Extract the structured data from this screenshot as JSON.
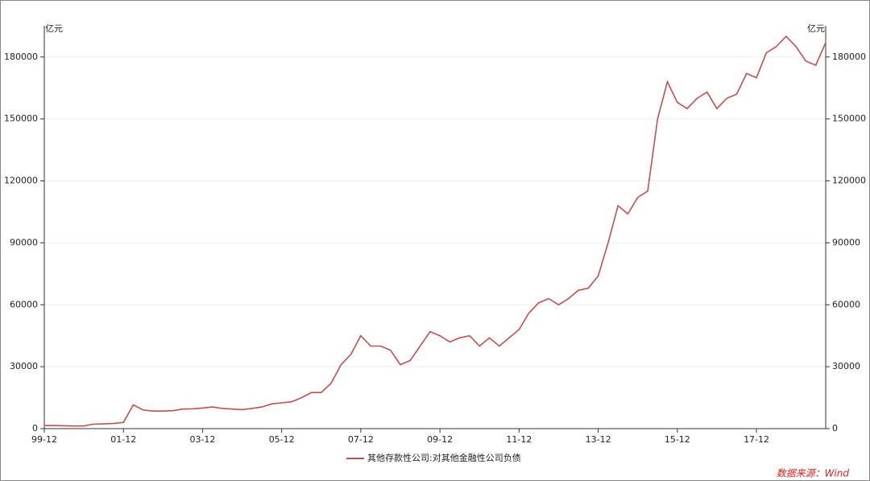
{
  "chart_data": {
    "type": "line",
    "y_label": "亿元",
    "y2_label": "亿元",
    "source": "数据来源：Wind",
    "categories": [
      "99-12",
      null,
      null,
      null,
      null,
      null,
      null,
      null,
      "01-12",
      null,
      null,
      null,
      null,
      null,
      null,
      null,
      "03-12",
      null,
      null,
      null,
      null,
      null,
      null,
      null,
      "05-12",
      null,
      null,
      null,
      null,
      null,
      null,
      null,
      "07-12",
      null,
      null,
      null,
      null,
      null,
      null,
      null,
      "09-12",
      null,
      null,
      null,
      null,
      null,
      null,
      null,
      "11-12",
      null,
      null,
      null,
      null,
      null,
      null,
      null,
      "13-12",
      null,
      null,
      null,
      null,
      null,
      null,
      null,
      "15-12",
      null,
      null,
      null,
      null,
      null,
      null,
      null,
      "17-12",
      null,
      null,
      null,
      null,
      null,
      null,
      null
    ],
    "series": [
      {
        "name": "其他存款性公司:对其他金融性公司负债",
        "color": "#c0504d",
        "values": [
          1500,
          1500,
          1400,
          1300,
          1300,
          2200,
          2300,
          2500,
          3000,
          11500,
          9000,
          8500,
          8500,
          8700,
          9500,
          9600,
          10000,
          10500,
          9800,
          9500,
          9200,
          9800,
          10500,
          12000,
          12500,
          13000,
          15000,
          17500,
          17500,
          22000,
          31000,
          36000,
          45000,
          40000,
          40000,
          38000,
          31000,
          33000,
          40000,
          47000,
          45000,
          42000,
          44000,
          45000,
          40000,
          44000,
          40000,
          44000,
          48000,
          56000,
          61000,
          63000,
          60000,
          63000,
          67000,
          68000,
          74000,
          90000,
          108000,
          104000,
          112000,
          115000,
          150000,
          168000,
          158000,
          155000,
          160000,
          163000,
          155000,
          160000,
          162000,
          172000,
          170000,
          182000,
          185000,
          190000,
          185000,
          178000,
          176000,
          187000
        ]
      }
    ],
    "ylim": [
      0,
      192000
    ],
    "yticks": [
      0,
      30000,
      60000,
      90000,
      120000,
      150000,
      180000
    ],
    "y2lim": [
      0,
      192000
    ],
    "y2ticks": [
      0,
      30000,
      60000,
      90000,
      120000,
      150000,
      180000
    ],
    "grid": true
  }
}
